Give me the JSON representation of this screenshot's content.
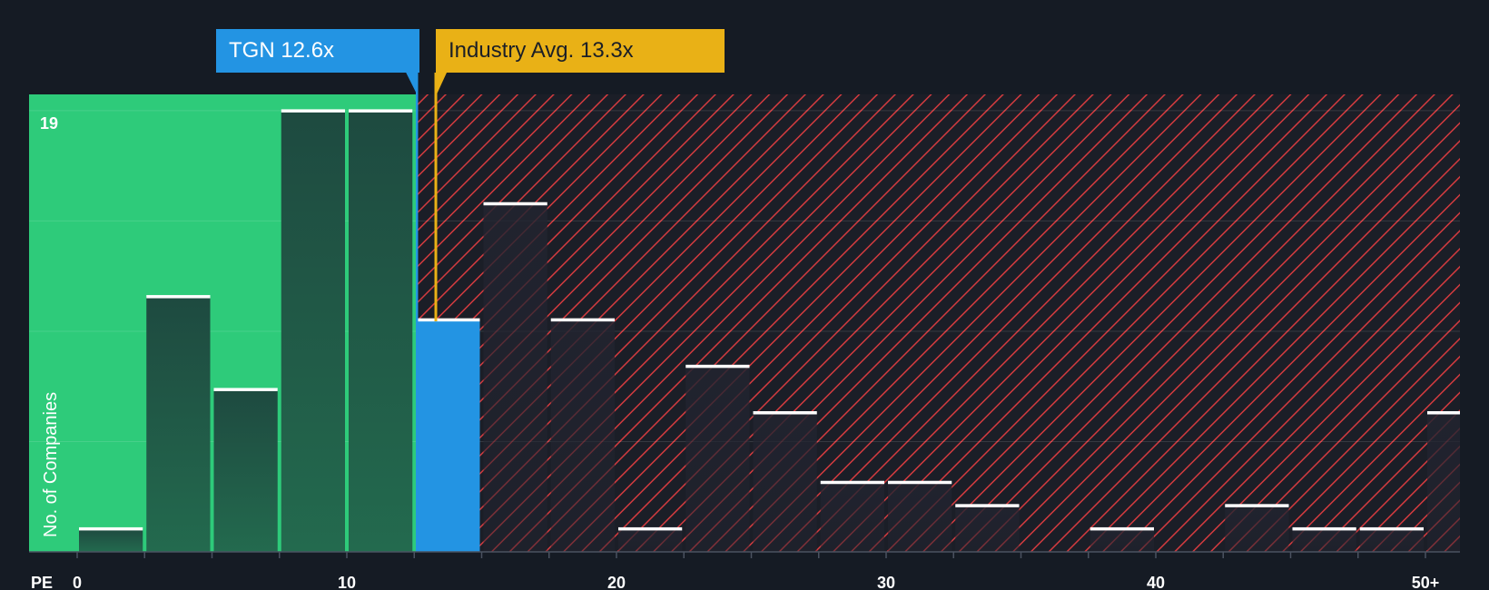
{
  "colors": {
    "background": "#151b24",
    "undervalued_zone": "#2ecb7a",
    "overvalued_hatch": "#d43b3f",
    "company": "#2394e3",
    "industry": "#e9b116"
  },
  "company_label": "TGN 12.6x",
  "industry_label": "Industry Avg. 13.3x",
  "chart_data": {
    "type": "bar",
    "title": "",
    "xlabel": "PE",
    "ylabel": "No. of Companies",
    "y_top_label": "19",
    "ylim": [
      0,
      19.7
    ],
    "y_gridlines": [
      4.75,
      9.5,
      14.25,
      19
    ],
    "x_range": [
      0,
      51.25
    ],
    "x_ticks": [
      "0",
      "10",
      "20",
      "30",
      "40",
      "50+"
    ],
    "x_tick_values": [
      0,
      10,
      20,
      30,
      40,
      50
    ],
    "bin_width": 2.5,
    "bins": [
      {
        "start": 0,
        "value": 1
      },
      {
        "start": 2.5,
        "value": 11
      },
      {
        "start": 5,
        "value": 7
      },
      {
        "start": 7.5,
        "value": 19
      },
      {
        "start": 10,
        "value": 19
      },
      {
        "start": 12.5,
        "value": 10,
        "highlight": true
      },
      {
        "start": 15,
        "value": 15
      },
      {
        "start": 17.5,
        "value": 10
      },
      {
        "start": 20,
        "value": 1
      },
      {
        "start": 22.5,
        "value": 8
      },
      {
        "start": 25,
        "value": 6
      },
      {
        "start": 27.5,
        "value": 3
      },
      {
        "start": 30,
        "value": 3
      },
      {
        "start": 32.5,
        "value": 2
      },
      {
        "start": 35,
        "value": 0
      },
      {
        "start": 37.5,
        "value": 1
      },
      {
        "start": 40,
        "value": 0
      },
      {
        "start": 42.5,
        "value": 2
      },
      {
        "start": 45,
        "value": 1
      },
      {
        "start": 47.5,
        "value": 1
      },
      {
        "start": 50,
        "value": 6
      }
    ],
    "company_pe": 12.6,
    "industry_avg_pe": 13.3
  }
}
